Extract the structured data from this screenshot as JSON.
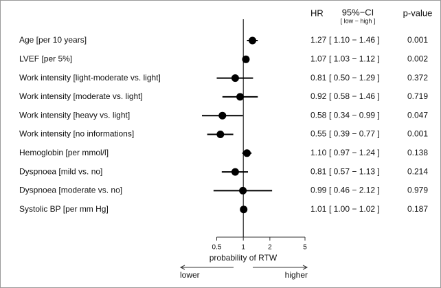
{
  "chart_data": {
    "type": "forest",
    "headers": {
      "hr": "HR",
      "ci": "95%−CI",
      "ci_sub": "[ low − high ]",
      "p": "p-value"
    },
    "categories": [
      "Age [per 10 years]",
      "LVEF [per 5%]",
      "Work intensity [light-moderate vs. light]",
      "Work intensity [moderate vs. light]",
      "Work intensity [heavy vs. light]",
      "Work intensity [no informations]",
      "Hemoglobin [per mmol/l]",
      "Dyspnoea [mild vs. no]",
      "Dyspnoea [moderate vs. no]",
      "Systolic BP [per mm Hg]"
    ],
    "values": [
      1.27,
      1.07,
      0.81,
      0.92,
      0.58,
      0.55,
      1.1,
      0.81,
      0.99,
      1.01
    ],
    "value_labels": [
      "1.27",
      "1.07",
      "0.81",
      "0.92",
      "0.58",
      "0.55",
      "1.10",
      "0.81",
      "0.99",
      "1.01"
    ],
    "lower": [
      1.1,
      1.03,
      0.5,
      0.58,
      0.34,
      0.39,
      0.97,
      0.57,
      0.46,
      1.0
    ],
    "upper": [
      1.46,
      1.12,
      1.29,
      1.46,
      0.99,
      0.77,
      1.24,
      1.13,
      2.12,
      1.02
    ],
    "ci_labels": [
      "[ 1.10 − 1.46 ]",
      "[ 1.03 − 1.12 ]",
      "[ 0.50 − 1.29 ]",
      "[ 0.58 − 1.46 ]",
      "[ 0.34 − 0.99 ]",
      "[ 0.39 − 0.77 ]",
      "[ 0.97 − 1.24 ]",
      "[ 0.57 − 1.13 ]",
      "[ 0.46 − 2.12 ]",
      "[ 1.00 − 1.02 ]"
    ],
    "p_values": [
      "0.001",
      "0.002",
      "0.372",
      "0.719",
      "0.047",
      "0.001",
      "0.138",
      "0.214",
      "0.979",
      "0.187"
    ],
    "x_label": "probability of RTW",
    "direction_labels": {
      "left": "lower",
      "right": "higher"
    },
    "xscale": "log",
    "xlim": [
      0.3,
      5
    ],
    "xticks": [
      0.5,
      1,
      2,
      5
    ],
    "reference": 1,
    "color": "#000000"
  }
}
